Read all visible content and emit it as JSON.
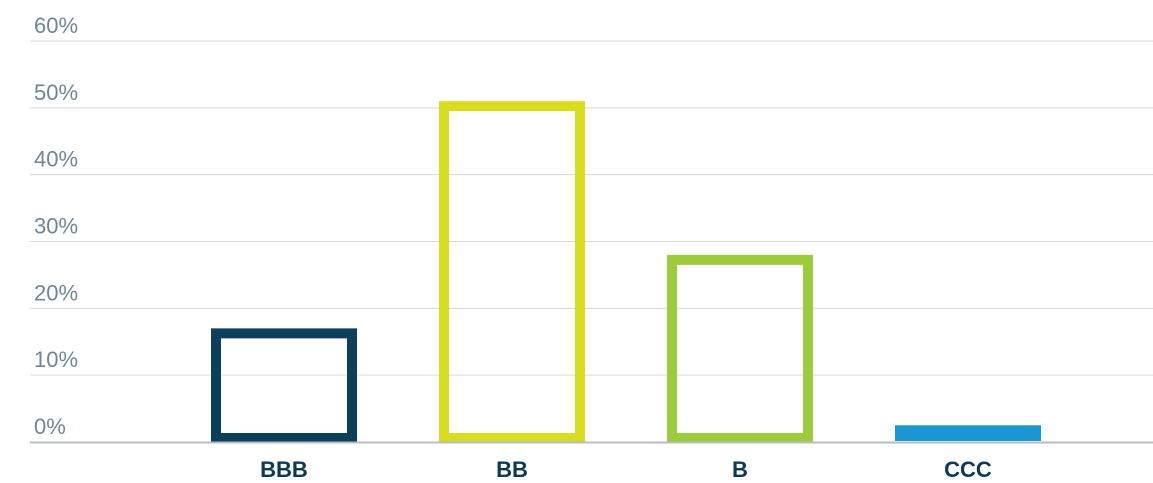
{
  "chart_data": {
    "type": "bar",
    "title": "",
    "xlabel": "",
    "ylabel": "",
    "categories": [
      "BBB",
      "BB",
      "B",
      "CCC"
    ],
    "values": [
      17,
      51,
      28,
      2.5
    ],
    "ylim": [
      0,
      60
    ],
    "yticks": [
      0,
      10,
      20,
      30,
      40,
      50,
      60
    ],
    "ytick_labels": [
      "0%",
      "10%",
      "20%",
      "30%",
      "40%",
      "50%",
      "60%"
    ],
    "grid": true,
    "legend": "none",
    "bar_styles": [
      "outline",
      "outline",
      "outline",
      "filled"
    ],
    "colors": [
      "#0b3f5c",
      "#d9dd1f",
      "#9ccb3b",
      "#1a96d3"
    ]
  },
  "colors": {
    "gridline": "#d6dadd",
    "baseline": "#b8bcbf",
    "tick_text": "#6d8796",
    "category_text": "#0b3a55"
  }
}
